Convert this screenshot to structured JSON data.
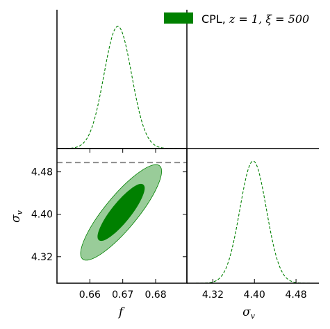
{
  "chart_data": {
    "type": "corner",
    "legend": {
      "label_prefix": "CPL, ",
      "label_math": "z = 1, ξ = 500",
      "color": "#008000",
      "placement": "top-right"
    },
    "f": {
      "axis_label": "f",
      "range": [
        0.65,
        0.6895
      ],
      "ticks": [
        "0.66",
        "0.67",
        "0.68"
      ],
      "tick_values": [
        0.66,
        0.67,
        0.68
      ],
      "marginal": {
        "mean": 0.6685,
        "sigma": 0.0042,
        "color": "#008000",
        "linestyle": "dashed"
      }
    },
    "sigma_v": {
      "axis_label": "σ",
      "axis_label_sub": "v",
      "range": [
        4.27,
        4.524
      ],
      "ticks": [
        "4.32",
        "4.40",
        "4.48"
      ],
      "tick_values": [
        4.32,
        4.4,
        4.48
      ],
      "marginal": {
        "mean": 4.3975,
        "sigma": 0.0255,
        "color": "#008000",
        "linestyle": "dashed"
      }
    },
    "joint": {
      "center": [
        0.6695,
        4.4035
      ],
      "confidence_regions": [
        {
          "level": "outer",
          "f_semi_extent": 0.0117,
          "sigma_v_semi_extent": 0.088,
          "color": "#008000",
          "opacity": 0.4
        },
        {
          "level": "inner",
          "f_semi_extent": 0.0067,
          "sigma_v_semi_extent": 0.052,
          "color": "#008000",
          "opacity": 1.0
        }
      ],
      "reference_line": {
        "sigma_v": 4.4975,
        "color": "#808080",
        "linestyle": "dashed"
      }
    }
  }
}
